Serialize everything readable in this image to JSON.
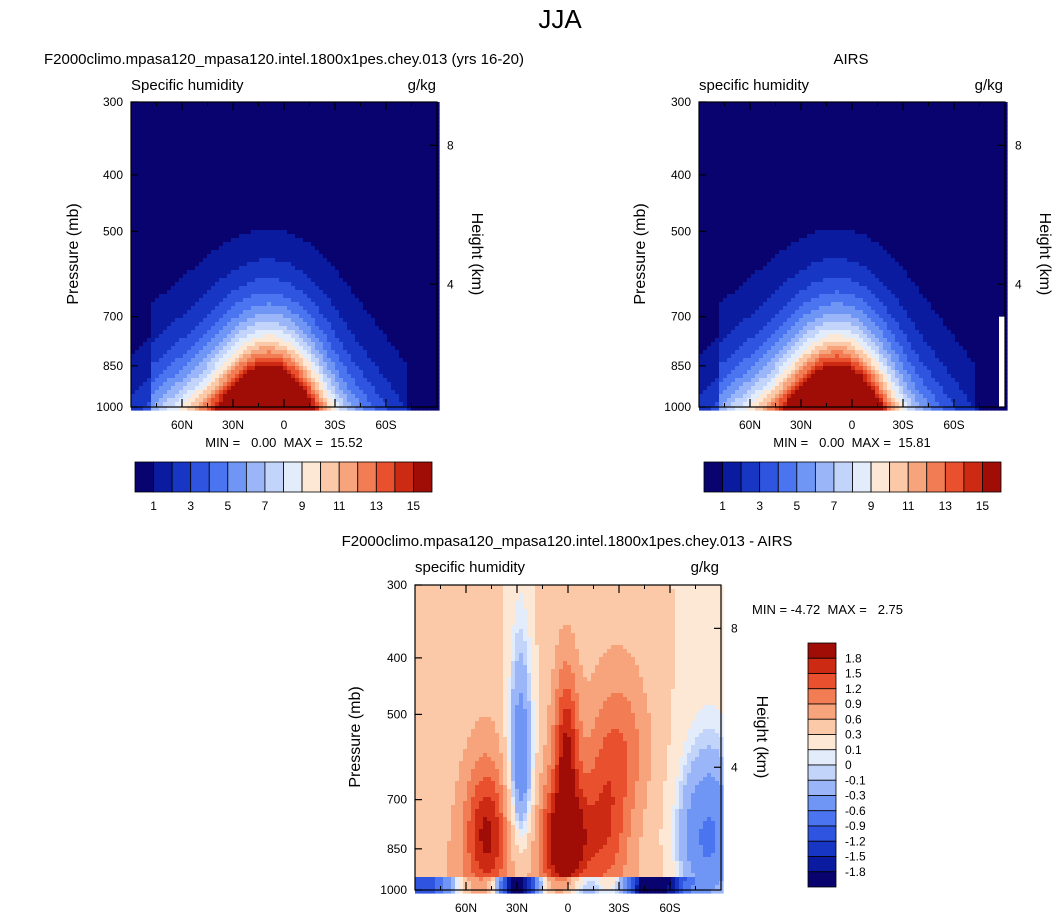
{
  "page_title": "JJA",
  "chart_data": [
    {
      "type": "heatmap",
      "panel": "model",
      "title": "F2000climo.mpasa120_mpasa120.intel.1800x1pes.chey.013 (yrs 16-20)",
      "variable": "Specific humidity",
      "units": "g/kg",
      "ylabel": "Pressure (mb)",
      "ylabel_right": "Height (km)",
      "x_ticks": [
        "60N",
        "30N",
        "0",
        "30S",
        "60S"
      ],
      "y_ticks": [
        "300",
        "400",
        "500",
        "700",
        "850",
        "1000"
      ],
      "height_ticks": [
        "8",
        "4"
      ],
      "min_label": "MIN =   0.00  MAX =  15.52",
      "min": 0.0,
      "max": 15.52,
      "levels": [
        1,
        2,
        3,
        4,
        5,
        6,
        7,
        8,
        9,
        10,
        11,
        12,
        13,
        14,
        15
      ],
      "colorbar_labels": [
        "1",
        "3",
        "5",
        "7",
        "9",
        "11",
        "13",
        "15"
      ]
    },
    {
      "type": "heatmap",
      "panel": "obs",
      "title": "AIRS",
      "variable": "specific humidity",
      "units": "g/kg",
      "ylabel": "Pressure (mb)",
      "ylabel_right": "Height (km)",
      "x_ticks": [
        "60N",
        "30N",
        "0",
        "30S",
        "60S"
      ],
      "y_ticks": [
        "300",
        "400",
        "500",
        "700",
        "850",
        "1000"
      ],
      "height_ticks": [
        "8",
        "4"
      ],
      "min_label": "MIN =   0.00  MAX =  15.81",
      "min": 0.0,
      "max": 15.81,
      "levels": [
        1,
        2,
        3,
        4,
        5,
        6,
        7,
        8,
        9,
        10,
        11,
        12,
        13,
        14,
        15
      ],
      "colorbar_labels": [
        "1",
        "3",
        "5",
        "7",
        "9",
        "11",
        "13",
        "15"
      ]
    },
    {
      "type": "heatmap",
      "panel": "difference",
      "title": "F2000climo.mpasa120_mpasa120.intel.1800x1pes.chey.013 - AIRS",
      "variable": "specific humidity",
      "units": "g/kg",
      "ylabel": "Pressure (mb)",
      "ylabel_right": "Height (km)",
      "x_ticks": [
        "60N",
        "30N",
        "0",
        "30S",
        "60S"
      ],
      "y_ticks": [
        "300",
        "400",
        "500",
        "700",
        "850",
        "1000"
      ],
      "height_ticks": [
        "8",
        "4"
      ],
      "min_label": "MIN = -4.72  MAX =   2.75",
      "min": -4.72,
      "max": 2.75,
      "levels": [
        -1.8,
        -1.5,
        -1.2,
        -0.9,
        -0.6,
        -0.3,
        -0.1,
        0,
        0.1,
        0.3,
        0.6,
        0.9,
        1.2,
        1.5,
        1.8
      ],
      "colorbar_labels": [
        "1.8",
        "1.5",
        "1.2",
        "0.9",
        "0.6",
        "0.3",
        "0.1",
        "0",
        "-0.1",
        "-0.3",
        "-0.6",
        "-0.9",
        "-1.2",
        "-1.5",
        "-1.8"
      ]
    }
  ],
  "palette": [
    "#08036e",
    "#0a1ba0",
    "#1836c4",
    "#2f55e0",
    "#4a74f0",
    "#6f95f5",
    "#9ab6f8",
    "#c2d4fa",
    "#e3ecfb",
    "#fde8d6",
    "#fbc8a8",
    "#f7a37c",
    "#f27c54",
    "#e8502e",
    "#cc2a12",
    "#a00d07",
    "#7a0000"
  ]
}
